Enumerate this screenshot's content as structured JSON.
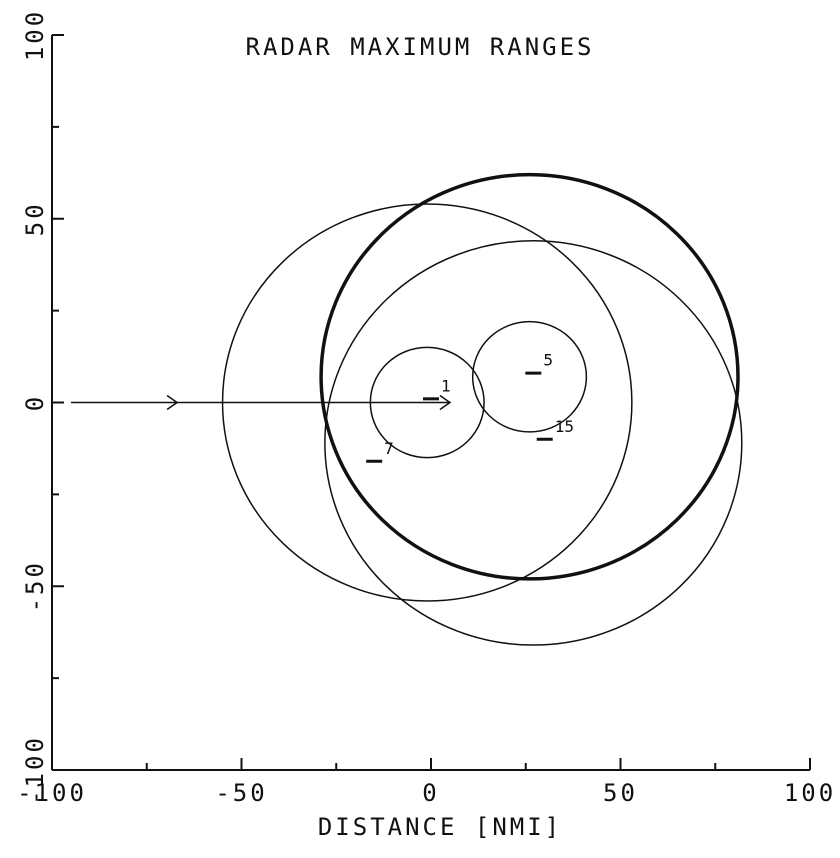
{
  "chart_data": {
    "type": "circles",
    "title": "RADAR MAXIMUM RANGES",
    "xlabel": "DISTANCE [NMI]",
    "xlim": [
      -100,
      100
    ],
    "ylim": [
      -100,
      100
    ],
    "xticks": [
      -100,
      -50,
      0,
      50,
      100
    ],
    "yticks": [
      -100,
      -50,
      0,
      50,
      100
    ],
    "xminor": [
      -75,
      -25,
      25,
      75
    ],
    "yminor": [
      -75,
      -25,
      25,
      75
    ],
    "color": "#111111",
    "series": [
      {
        "x": 26,
        "y": 7,
        "r": 55,
        "width": 3.5
      },
      {
        "x": -1,
        "y": 0,
        "r": 54,
        "width": 1.5
      },
      {
        "x": 27,
        "y": -11,
        "r": 55,
        "width": 1.5
      },
      {
        "x": -1,
        "y": 0,
        "r": 15,
        "width": 1.5
      },
      {
        "x": 26,
        "y": 7,
        "r": 15,
        "width": 1.5
      }
    ],
    "track": {
      "x": [
        -95,
        5
      ],
      "y": [
        0,
        0
      ],
      "arrow_x": -67
    },
    "points": [
      {
        "label": "1",
        "x": 0,
        "y": 1
      },
      {
        "label": "5",
        "x": 27,
        "y": 8
      },
      {
        "label": "15",
        "x": 30,
        "y": -10
      },
      {
        "label": "7",
        "x": -15,
        "y": -16
      }
    ]
  }
}
